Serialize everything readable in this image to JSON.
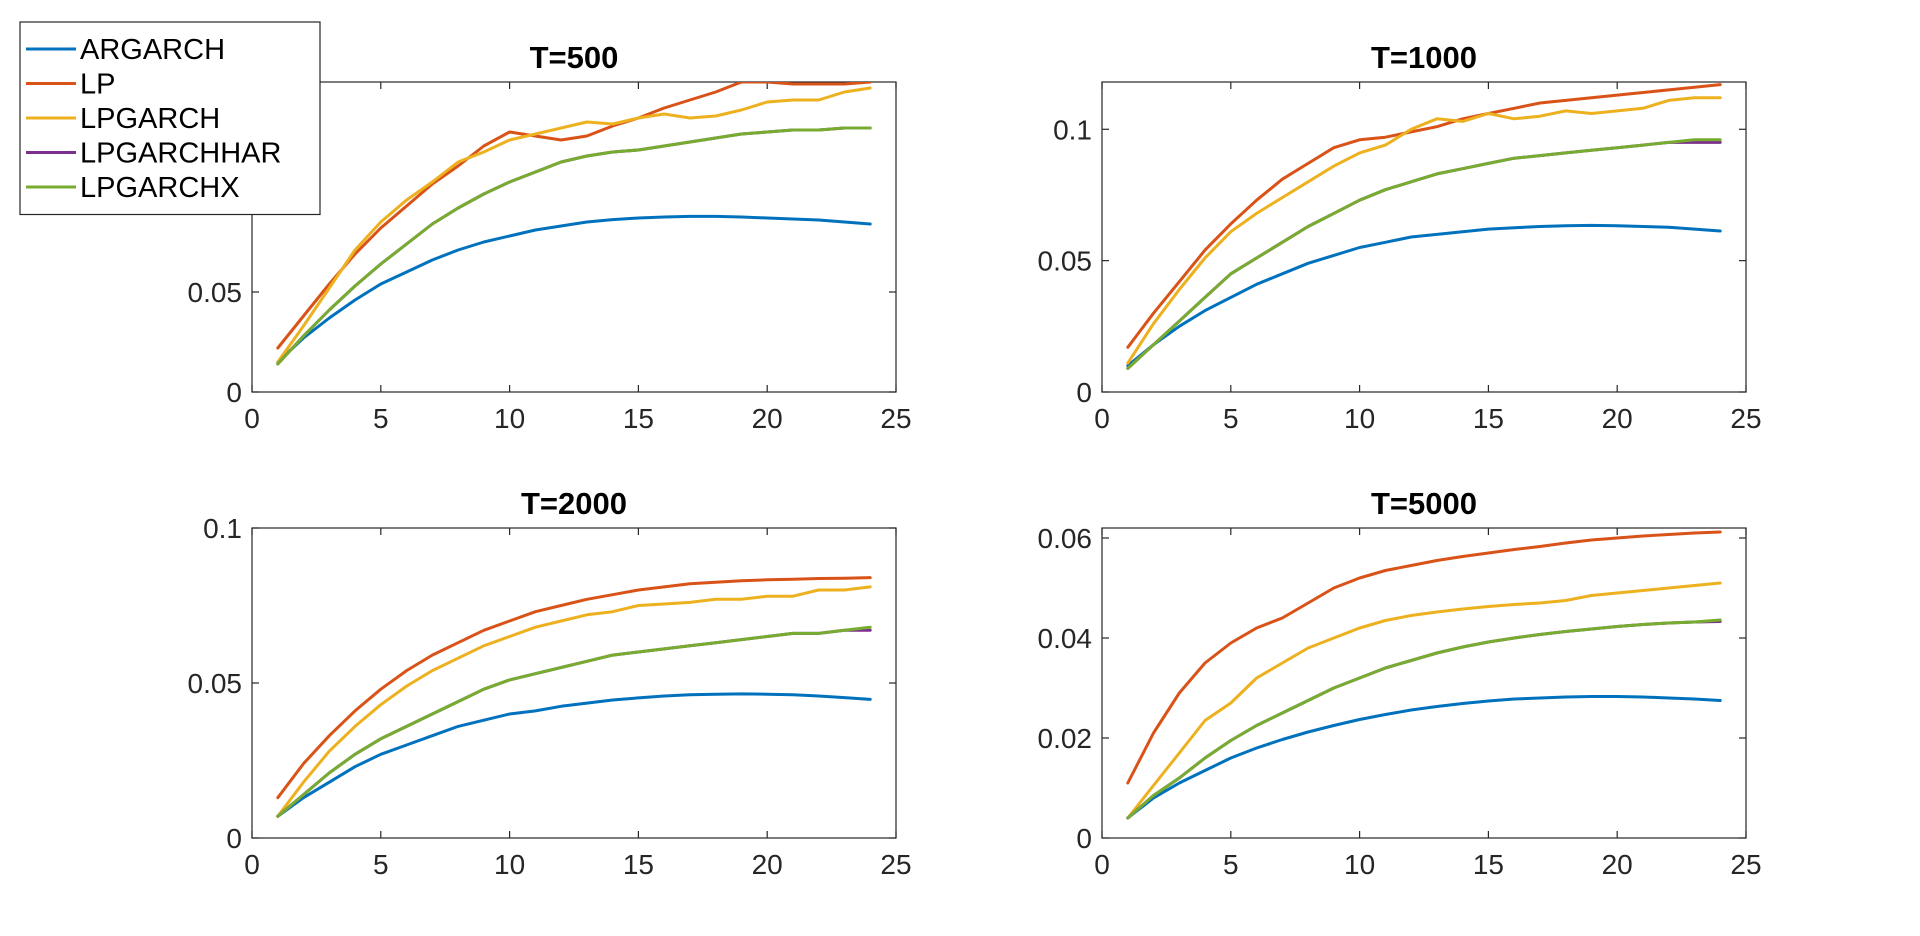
{
  "chart_data": [
    {
      "type": "line",
      "title": "T=500",
      "xlabel": "",
      "ylabel": "",
      "xlim": [
        0,
        25
      ],
      "ylim": [
        0,
        0.155
      ],
      "xticks": [
        0,
        5,
        10,
        15,
        20,
        25
      ],
      "xtick_labels": [
        "0",
        "5",
        "10",
        "15",
        "20",
        "25"
      ],
      "yticks": [
        0,
        0.05
      ],
      "ytick_labels": [
        "0",
        "0.05"
      ],
      "x": [
        1,
        2,
        3,
        4,
        5,
        6,
        7,
        8,
        9,
        10,
        11,
        12,
        13,
        14,
        15,
        16,
        17,
        18,
        19,
        20,
        21,
        22,
        23,
        24
      ],
      "series": [
        {
          "name": "ARGARCH",
          "color": "#0072BD",
          "values": [
            0.015,
            0.027,
            0.037,
            0.046,
            0.054,
            0.06,
            0.066,
            0.071,
            0.075,
            0.078,
            0.081,
            0.083,
            0.085,
            0.0862,
            0.087,
            0.0875,
            0.0878,
            0.0878,
            0.0875,
            0.087,
            0.0865,
            0.086,
            0.085,
            0.084
          ]
        },
        {
          "name": "LP",
          "color": "#D95319",
          "values": [
            0.022,
            0.038,
            0.054,
            0.069,
            0.082,
            0.093,
            0.104,
            0.113,
            0.123,
            0.13,
            0.128,
            0.126,
            0.128,
            0.133,
            0.137,
            0.142,
            0.146,
            0.15,
            0.155,
            0.155,
            0.154,
            0.154,
            0.154,
            0.155
          ]
        },
        {
          "name": "LPGARCH",
          "color": "#EDB120",
          "values": [
            0.015,
            0.033,
            0.052,
            0.071,
            0.085,
            0.096,
            0.105,
            0.115,
            0.12,
            0.126,
            0.129,
            0.132,
            0.135,
            0.134,
            0.137,
            0.139,
            0.137,
            0.138,
            0.141,
            0.145,
            0.146,
            0.146,
            0.15,
            0.152
          ]
        },
        {
          "name": "LPGARCHHAR",
          "color": "#7E2F8E",
          "values": [
            0.014,
            0.028,
            0.041,
            0.053,
            0.064,
            0.074,
            0.084,
            0.092,
            0.099,
            0.105,
            0.11,
            0.115,
            0.118,
            0.12,
            0.121,
            0.123,
            0.125,
            0.127,
            0.129,
            0.13,
            0.131,
            0.131,
            0.132,
            0.132
          ]
        },
        {
          "name": "LPGARCHX",
          "color": "#77AC30",
          "values": [
            0.014,
            0.028,
            0.041,
            0.053,
            0.064,
            0.074,
            0.084,
            0.092,
            0.099,
            0.105,
            0.11,
            0.115,
            0.118,
            0.12,
            0.121,
            0.123,
            0.125,
            0.127,
            0.129,
            0.13,
            0.131,
            0.131,
            0.132,
            0.132
          ]
        }
      ]
    },
    {
      "type": "line",
      "title": "T=1000",
      "xlabel": "",
      "ylabel": "",
      "xlim": [
        0,
        25
      ],
      "ylim": [
        0,
        0.118
      ],
      "xticks": [
        0,
        5,
        10,
        15,
        20,
        25
      ],
      "xtick_labels": [
        "0",
        "5",
        "10",
        "15",
        "20",
        "25"
      ],
      "yticks": [
        0,
        0.05,
        0.1
      ],
      "ytick_labels": [
        "0",
        "0.05",
        "0.1"
      ],
      "x": [
        1,
        2,
        3,
        4,
        5,
        6,
        7,
        8,
        9,
        10,
        11,
        12,
        13,
        14,
        15,
        16,
        17,
        18,
        19,
        20,
        21,
        22,
        23,
        24
      ],
      "series": [
        {
          "name": "ARGARCH",
          "color": "#0072BD",
          "values": [
            0.01,
            0.018,
            0.025,
            0.031,
            0.036,
            0.041,
            0.045,
            0.049,
            0.052,
            0.055,
            0.057,
            0.059,
            0.06,
            0.061,
            0.062,
            0.0625,
            0.063,
            0.0633,
            0.0634,
            0.0633,
            0.063,
            0.0627,
            0.062,
            0.0613
          ]
        },
        {
          "name": "LP",
          "color": "#D95319",
          "values": [
            0.017,
            0.03,
            0.042,
            0.054,
            0.064,
            0.073,
            0.081,
            0.087,
            0.093,
            0.096,
            0.097,
            0.099,
            0.101,
            0.104,
            0.106,
            0.108,
            0.11,
            0.111,
            0.112,
            0.113,
            0.114,
            0.115,
            0.116,
            0.117
          ]
        },
        {
          "name": "LPGARCH",
          "color": "#EDB120",
          "values": [
            0.011,
            0.026,
            0.039,
            0.051,
            0.061,
            0.068,
            0.074,
            0.08,
            0.086,
            0.091,
            0.094,
            0.1,
            0.104,
            0.103,
            0.106,
            0.104,
            0.105,
            0.107,
            0.106,
            0.107,
            0.108,
            0.111,
            0.112,
            0.112
          ]
        },
        {
          "name": "LPGARCHHAR",
          "color": "#7E2F8E",
          "values": [
            0.009,
            0.018,
            0.027,
            0.036,
            0.045,
            0.051,
            0.057,
            0.063,
            0.068,
            0.073,
            0.077,
            0.08,
            0.083,
            0.085,
            0.087,
            0.089,
            0.09,
            0.091,
            0.092,
            0.093,
            0.094,
            0.095,
            0.095,
            0.095
          ]
        },
        {
          "name": "LPGARCHX",
          "color": "#77AC30",
          "values": [
            0.009,
            0.018,
            0.027,
            0.036,
            0.045,
            0.051,
            0.057,
            0.063,
            0.068,
            0.073,
            0.077,
            0.08,
            0.083,
            0.085,
            0.087,
            0.089,
            0.09,
            0.091,
            0.092,
            0.093,
            0.094,
            0.095,
            0.096,
            0.096
          ]
        }
      ]
    },
    {
      "type": "line",
      "title": "T=2000",
      "xlabel": "",
      "ylabel": "",
      "xlim": [
        0,
        25
      ],
      "ylim": [
        0,
        0.1
      ],
      "xticks": [
        0,
        5,
        10,
        15,
        20,
        25
      ],
      "xtick_labels": [
        "0",
        "5",
        "10",
        "15",
        "20",
        "25"
      ],
      "yticks": [
        0,
        0.05,
        0.1
      ],
      "ytick_labels": [
        "0",
        "0.05",
        "0.1"
      ],
      "x": [
        1,
        2,
        3,
        4,
        5,
        6,
        7,
        8,
        9,
        10,
        11,
        12,
        13,
        14,
        15,
        16,
        17,
        18,
        19,
        20,
        21,
        22,
        23,
        24
      ],
      "series": [
        {
          "name": "ARGARCH",
          "color": "#0072BD",
          "values": [
            0.007,
            0.013,
            0.018,
            0.023,
            0.027,
            0.03,
            0.033,
            0.036,
            0.038,
            0.04,
            0.041,
            0.0425,
            0.0435,
            0.0445,
            0.0452,
            0.0458,
            0.0462,
            0.0464,
            0.0465,
            0.0464,
            0.0462,
            0.0458,
            0.0453,
            0.0447
          ]
        },
        {
          "name": "LP",
          "color": "#D95319",
          "values": [
            0.013,
            0.024,
            0.033,
            0.041,
            0.048,
            0.054,
            0.059,
            0.063,
            0.067,
            0.07,
            0.073,
            0.075,
            0.077,
            0.0785,
            0.08,
            0.081,
            0.082,
            0.0825,
            0.083,
            0.0833,
            0.0835,
            0.0837,
            0.0838,
            0.084
          ]
        },
        {
          "name": "LPGARCH",
          "color": "#EDB120",
          "values": [
            0.007,
            0.018,
            0.028,
            0.036,
            0.043,
            0.049,
            0.054,
            0.058,
            0.062,
            0.065,
            0.068,
            0.07,
            0.072,
            0.073,
            0.075,
            0.0755,
            0.076,
            0.077,
            0.077,
            0.078,
            0.078,
            0.08,
            0.08,
            0.081
          ]
        },
        {
          "name": "LPGARCHHAR",
          "color": "#7E2F8E",
          "values": [
            0.007,
            0.014,
            0.021,
            0.027,
            0.032,
            0.036,
            0.04,
            0.044,
            0.048,
            0.051,
            0.053,
            0.055,
            0.057,
            0.059,
            0.06,
            0.061,
            0.062,
            0.063,
            0.064,
            0.065,
            0.066,
            0.066,
            0.067,
            0.067
          ]
        },
        {
          "name": "LPGARCHX",
          "color": "#77AC30",
          "values": [
            0.007,
            0.014,
            0.021,
            0.027,
            0.032,
            0.036,
            0.04,
            0.044,
            0.048,
            0.051,
            0.053,
            0.055,
            0.057,
            0.059,
            0.06,
            0.061,
            0.062,
            0.063,
            0.064,
            0.065,
            0.066,
            0.066,
            0.067,
            0.068
          ]
        }
      ]
    },
    {
      "type": "line",
      "title": "T=5000",
      "xlabel": "",
      "ylabel": "",
      "xlim": [
        0,
        25
      ],
      "ylim": [
        0,
        0.062
      ],
      "xticks": [
        0,
        5,
        10,
        15,
        20,
        25
      ],
      "xtick_labels": [
        "0",
        "5",
        "10",
        "15",
        "20",
        "25"
      ],
      "yticks": [
        0,
        0.02,
        0.04,
        0.06
      ],
      "ytick_labels": [
        "0",
        "0.02",
        "0.04",
        "0.06"
      ],
      "x": [
        1,
        2,
        3,
        4,
        5,
        6,
        7,
        8,
        9,
        10,
        11,
        12,
        13,
        14,
        15,
        16,
        17,
        18,
        19,
        20,
        21,
        22,
        23,
        24
      ],
      "series": [
        {
          "name": "ARGARCH",
          "color": "#0072BD",
          "values": [
            0.004,
            0.008,
            0.011,
            0.0135,
            0.016,
            0.018,
            0.0197,
            0.0212,
            0.0225,
            0.0237,
            0.0247,
            0.0256,
            0.0263,
            0.0269,
            0.0274,
            0.0278,
            0.028,
            0.0282,
            0.0283,
            0.0283,
            0.0282,
            0.028,
            0.0278,
            0.0275
          ]
        },
        {
          "name": "LP",
          "color": "#D95319",
          "values": [
            0.011,
            0.021,
            0.029,
            0.035,
            0.039,
            0.042,
            0.044,
            0.047,
            0.05,
            0.052,
            0.0535,
            0.0545,
            0.0555,
            0.0563,
            0.057,
            0.0577,
            0.0583,
            0.059,
            0.0596,
            0.06,
            0.0604,
            0.0607,
            0.061,
            0.0612
          ]
        },
        {
          "name": "LPGARCH",
          "color": "#EDB120",
          "values": [
            0.004,
            0.0105,
            0.017,
            0.0235,
            0.027,
            0.032,
            0.035,
            0.038,
            0.04,
            0.042,
            0.0435,
            0.0445,
            0.0452,
            0.0458,
            0.0463,
            0.0467,
            0.047,
            0.0475,
            0.0485,
            0.049,
            0.0495,
            0.05,
            0.0505,
            0.051
          ]
        },
        {
          "name": "LPGARCHHAR",
          "color": "#7E2F8E",
          "values": [
            0.004,
            0.0085,
            0.012,
            0.016,
            0.0195,
            0.0225,
            0.025,
            0.0275,
            0.03,
            0.032,
            0.034,
            0.0355,
            0.037,
            0.0382,
            0.0392,
            0.04,
            0.0407,
            0.0413,
            0.0418,
            0.0423,
            0.0427,
            0.043,
            0.0432,
            0.0433
          ]
        },
        {
          "name": "LPGARCHX",
          "color": "#77AC30",
          "values": [
            0.004,
            0.0085,
            0.012,
            0.016,
            0.0195,
            0.0225,
            0.025,
            0.0275,
            0.03,
            0.032,
            0.034,
            0.0355,
            0.037,
            0.0382,
            0.0392,
            0.04,
            0.0407,
            0.0413,
            0.0418,
            0.0423,
            0.0427,
            0.043,
            0.0432,
            0.0436
          ]
        }
      ]
    }
  ],
  "legend": {
    "placement": "top-left",
    "items": [
      {
        "label": "ARGARCH",
        "color": "#0072BD"
      },
      {
        "label": "LP",
        "color": "#D95319"
      },
      {
        "label": "LPGARCH",
        "color": "#EDB120"
      },
      {
        "label": "LPGARCHHAR",
        "color": "#7E2F8E"
      },
      {
        "label": "LPGARCHX",
        "color": "#77AC30"
      }
    ]
  }
}
